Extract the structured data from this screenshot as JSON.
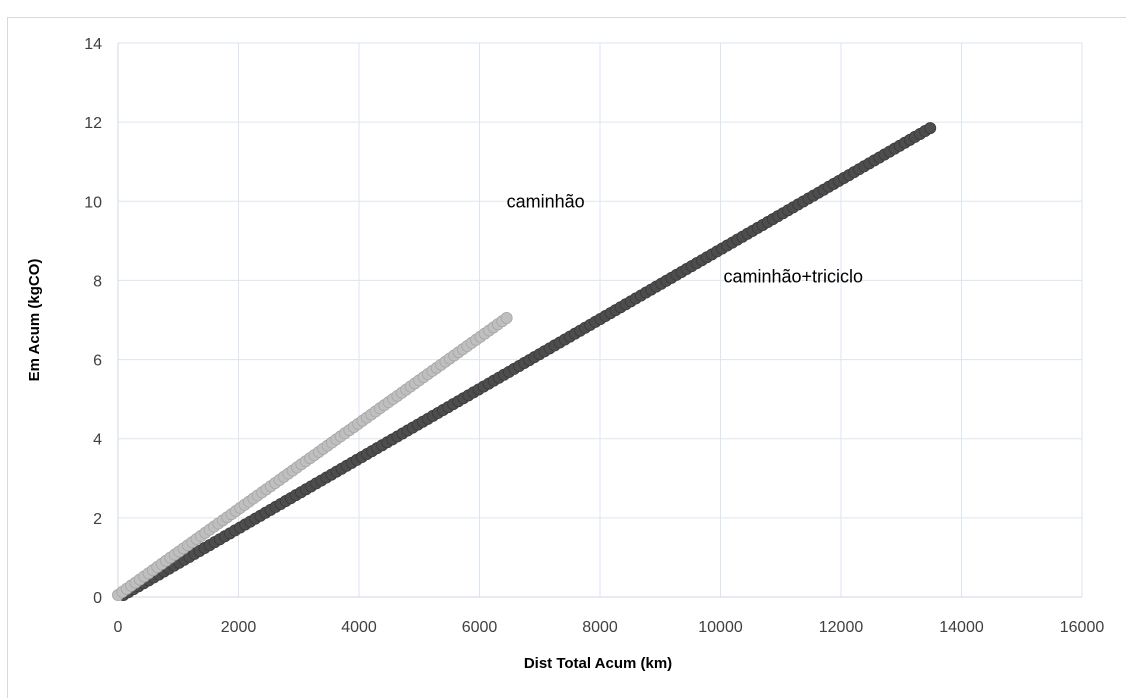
{
  "chart_data": {
    "type": "scatter",
    "xlabel": "Dist Total Acum (km)",
    "ylabel": "Em Acum (kgCO)",
    "xlim": [
      0,
      16000
    ],
    "ylim": [
      0,
      14
    ],
    "x_ticks": [
      "0",
      "2000",
      "4000",
      "6000",
      "8000",
      "10000",
      "12000",
      "14000",
      "16000"
    ],
    "y_ticks": [
      "0",
      "2",
      "4",
      "6",
      "8",
      "10",
      "12",
      "14"
    ],
    "grid": true,
    "legend": "none",
    "series": [
      {
        "name": "caminhão",
        "color": "#bfbfbf",
        "x_start": 0,
        "x_end": 6450,
        "y_start": 0.05,
        "y_end": 7.05,
        "n_points": 90
      },
      {
        "name": "caminhão+triciclo",
        "color": "#4d4d4d",
        "x_start": 90,
        "x_end": 13480,
        "y_start": 0.05,
        "y_end": 11.85,
        "n_points": 160
      }
    ],
    "annotations": [
      {
        "text": "caminhão",
        "x": 6450,
        "y": 10.0
      },
      {
        "text": "caminhão+triciclo",
        "x": 10050,
        "y": 8.1
      }
    ]
  }
}
